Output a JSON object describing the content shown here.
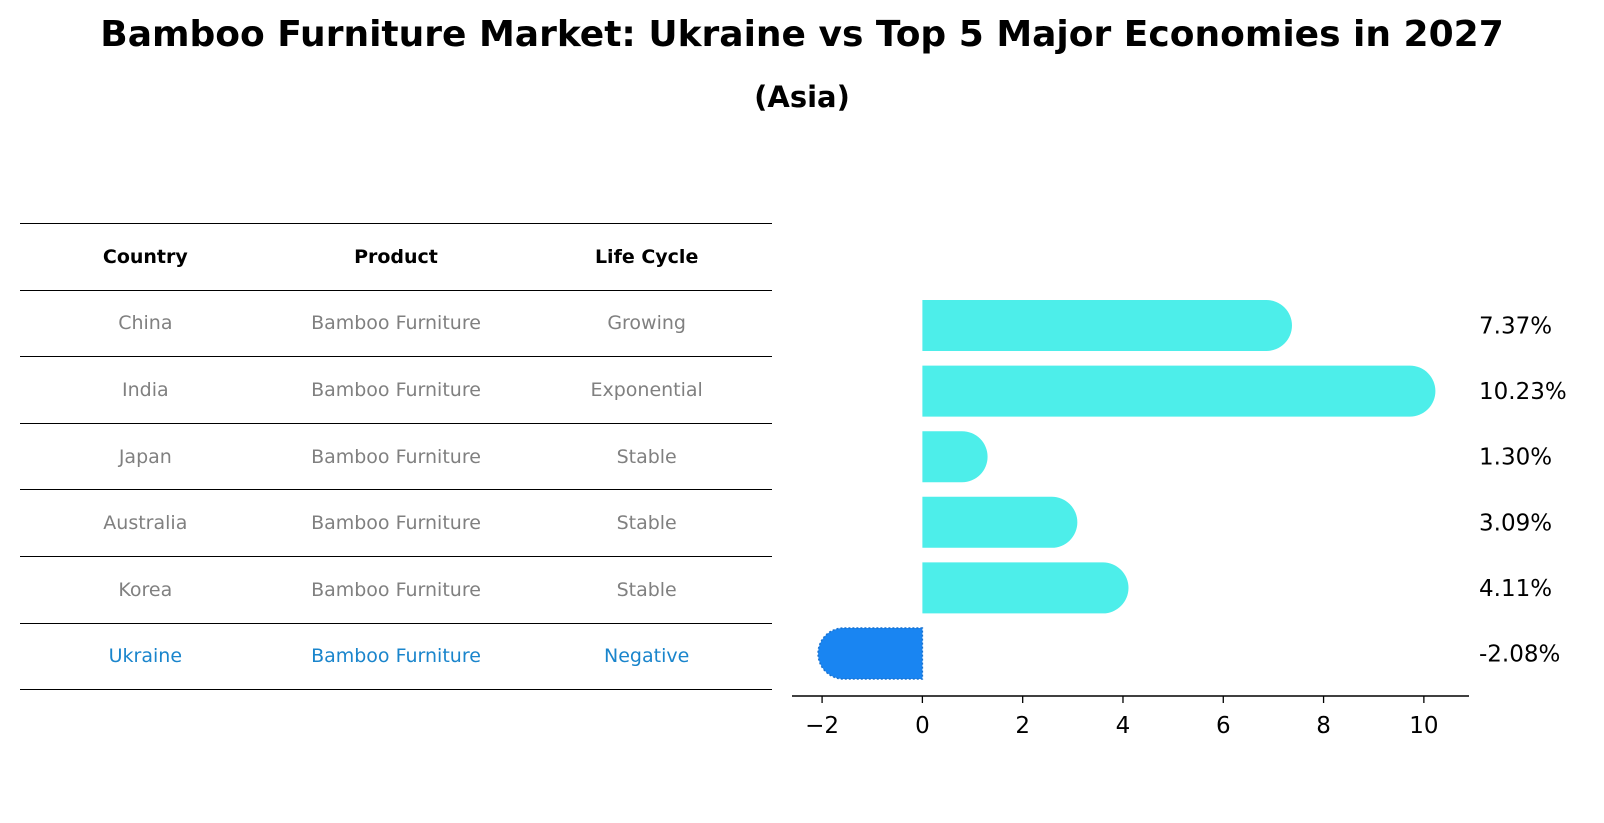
{
  "title": "Bamboo Furniture Market: Ukraine vs Top 5 Major Economies in 2027",
  "subtitle": "(Asia)",
  "table": {
    "headers": [
      "Country",
      "Product",
      "Life Cycle"
    ],
    "rows": [
      {
        "country": "China",
        "product": "Bamboo Furniture",
        "life_cycle": "Growing"
      },
      {
        "country": "India",
        "product": "Bamboo Furniture",
        "life_cycle": "Exponential"
      },
      {
        "country": "Japan",
        "product": "Bamboo Furniture",
        "life_cycle": "Stable"
      },
      {
        "country": "Australia",
        "product": "Bamboo Furniture",
        "life_cycle": "Stable"
      },
      {
        "country": "Korea",
        "product": "Bamboo Furniture",
        "life_cycle": "Stable"
      },
      {
        "country": "Ukraine",
        "product": "Bamboo Furniture",
        "life_cycle": "Negative"
      }
    ]
  },
  "chart_data": {
    "type": "bar",
    "orientation": "horizontal",
    "categories": [
      "China",
      "India",
      "Japan",
      "Australia",
      "Korea",
      "Ukraine"
    ],
    "values": [
      7.37,
      10.23,
      1.3,
      3.09,
      4.11,
      -2.08
    ],
    "value_labels": [
      "7.37%",
      "10.23%",
      "1.30%",
      "3.09%",
      "4.11%",
      "-2.08%"
    ],
    "xlim": [
      -2.6,
      10.9
    ],
    "xticks": [
      -2,
      0,
      2,
      4,
      6,
      8,
      10
    ],
    "xtick_labels": [
      "−2",
      "0",
      "2",
      "4",
      "6",
      "8",
      "10"
    ],
    "highlight": "Ukraine",
    "colors": {
      "bar": "#4deeea",
      "highlight": "#1985f2",
      "highlight_text": "#1a85cc",
      "muted_text": "#808080"
    }
  }
}
